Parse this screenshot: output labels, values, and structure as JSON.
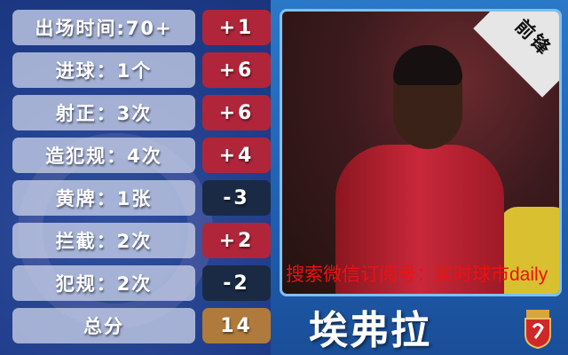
{
  "stats": [
    {
      "label": "出场时间:70+",
      "score": "+1",
      "type": "positive"
    },
    {
      "label": "进球：1个",
      "score": "+6",
      "type": "positive"
    },
    {
      "label": "射正：3次",
      "score": "+6",
      "type": "positive"
    },
    {
      "label": "造犯规：4次",
      "score": "+4",
      "type": "positive"
    },
    {
      "label": "黄牌：1张",
      "score": "-3",
      "type": "negative"
    },
    {
      "label": "拦截：2次",
      "score": "+2",
      "type": "positive"
    },
    {
      "label": "犯规：2次",
      "score": "-2",
      "type": "negative"
    },
    {
      "label": "总分",
      "score": "14",
      "type": "total"
    }
  ],
  "colors": {
    "positive": "#b0253a",
    "negative": "#1a2a44",
    "total": "#b07a3c"
  },
  "player": {
    "position": "前锋",
    "name": "埃弗拉",
    "club_logo": "shanghai-sipg-crest"
  },
  "watermark": "搜索微信订阅号：实时球市daily"
}
